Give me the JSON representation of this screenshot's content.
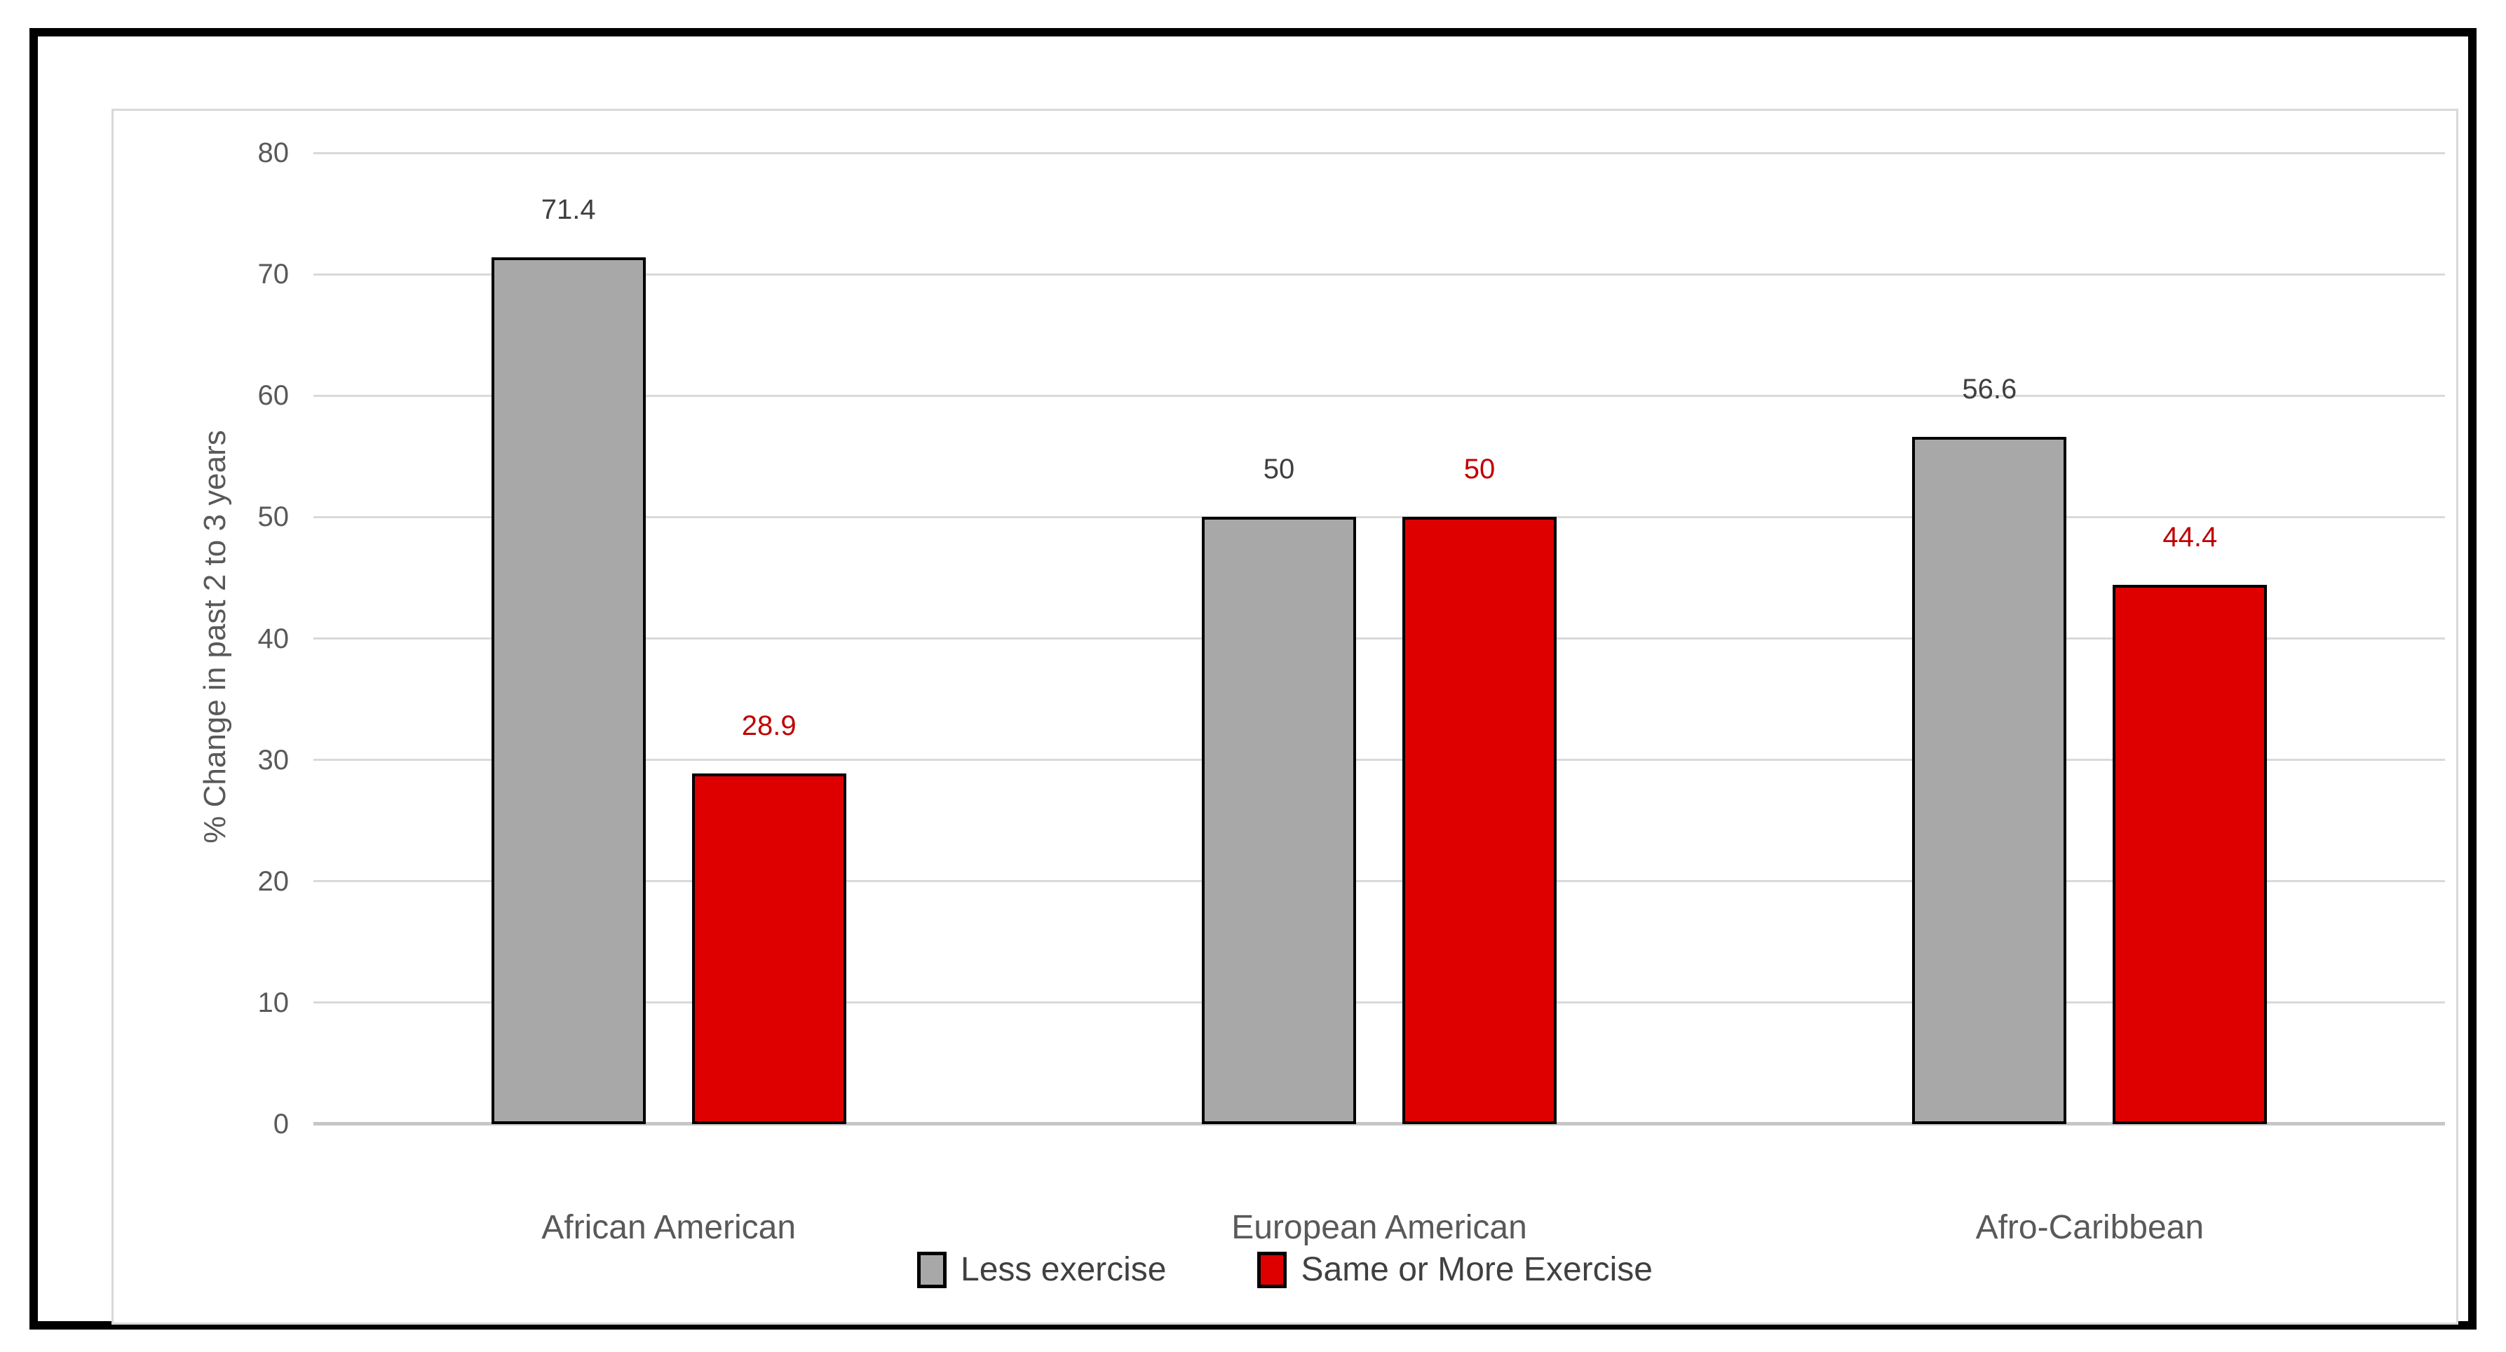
{
  "chart_data": {
    "type": "bar",
    "title": "",
    "xlabel": "",
    "ylabel": "% Change in past 2 to 3 years",
    "ylim": [
      0,
      80
    ],
    "yticks": [
      0,
      10,
      20,
      30,
      40,
      50,
      60,
      70,
      80
    ],
    "grid": true,
    "legend_position": "bottom",
    "categories": [
      "African American",
      "European American",
      "Afro-Caribbean"
    ],
    "series": [
      {
        "name": "Less exercise",
        "color": "#a8a8a8",
        "label_color": "#3f3f3f",
        "values": [
          71.4,
          50,
          56.6
        ],
        "labels": [
          "71.4",
          "50",
          "56.6"
        ]
      },
      {
        "name": "Same or More Exercise",
        "color": "#de0000",
        "label_color": "#c00000",
        "values": [
          28.9,
          50,
          44.4
        ],
        "labels": [
          "28.9",
          "50",
          "44.4"
        ]
      }
    ],
    "colors": {
      "gridline": "#d9d9d9",
      "axis_line": "#c6c6c6",
      "tick_text": "#595959",
      "frame_border": "#d9d9d9",
      "outer_border": "#000000"
    }
  }
}
